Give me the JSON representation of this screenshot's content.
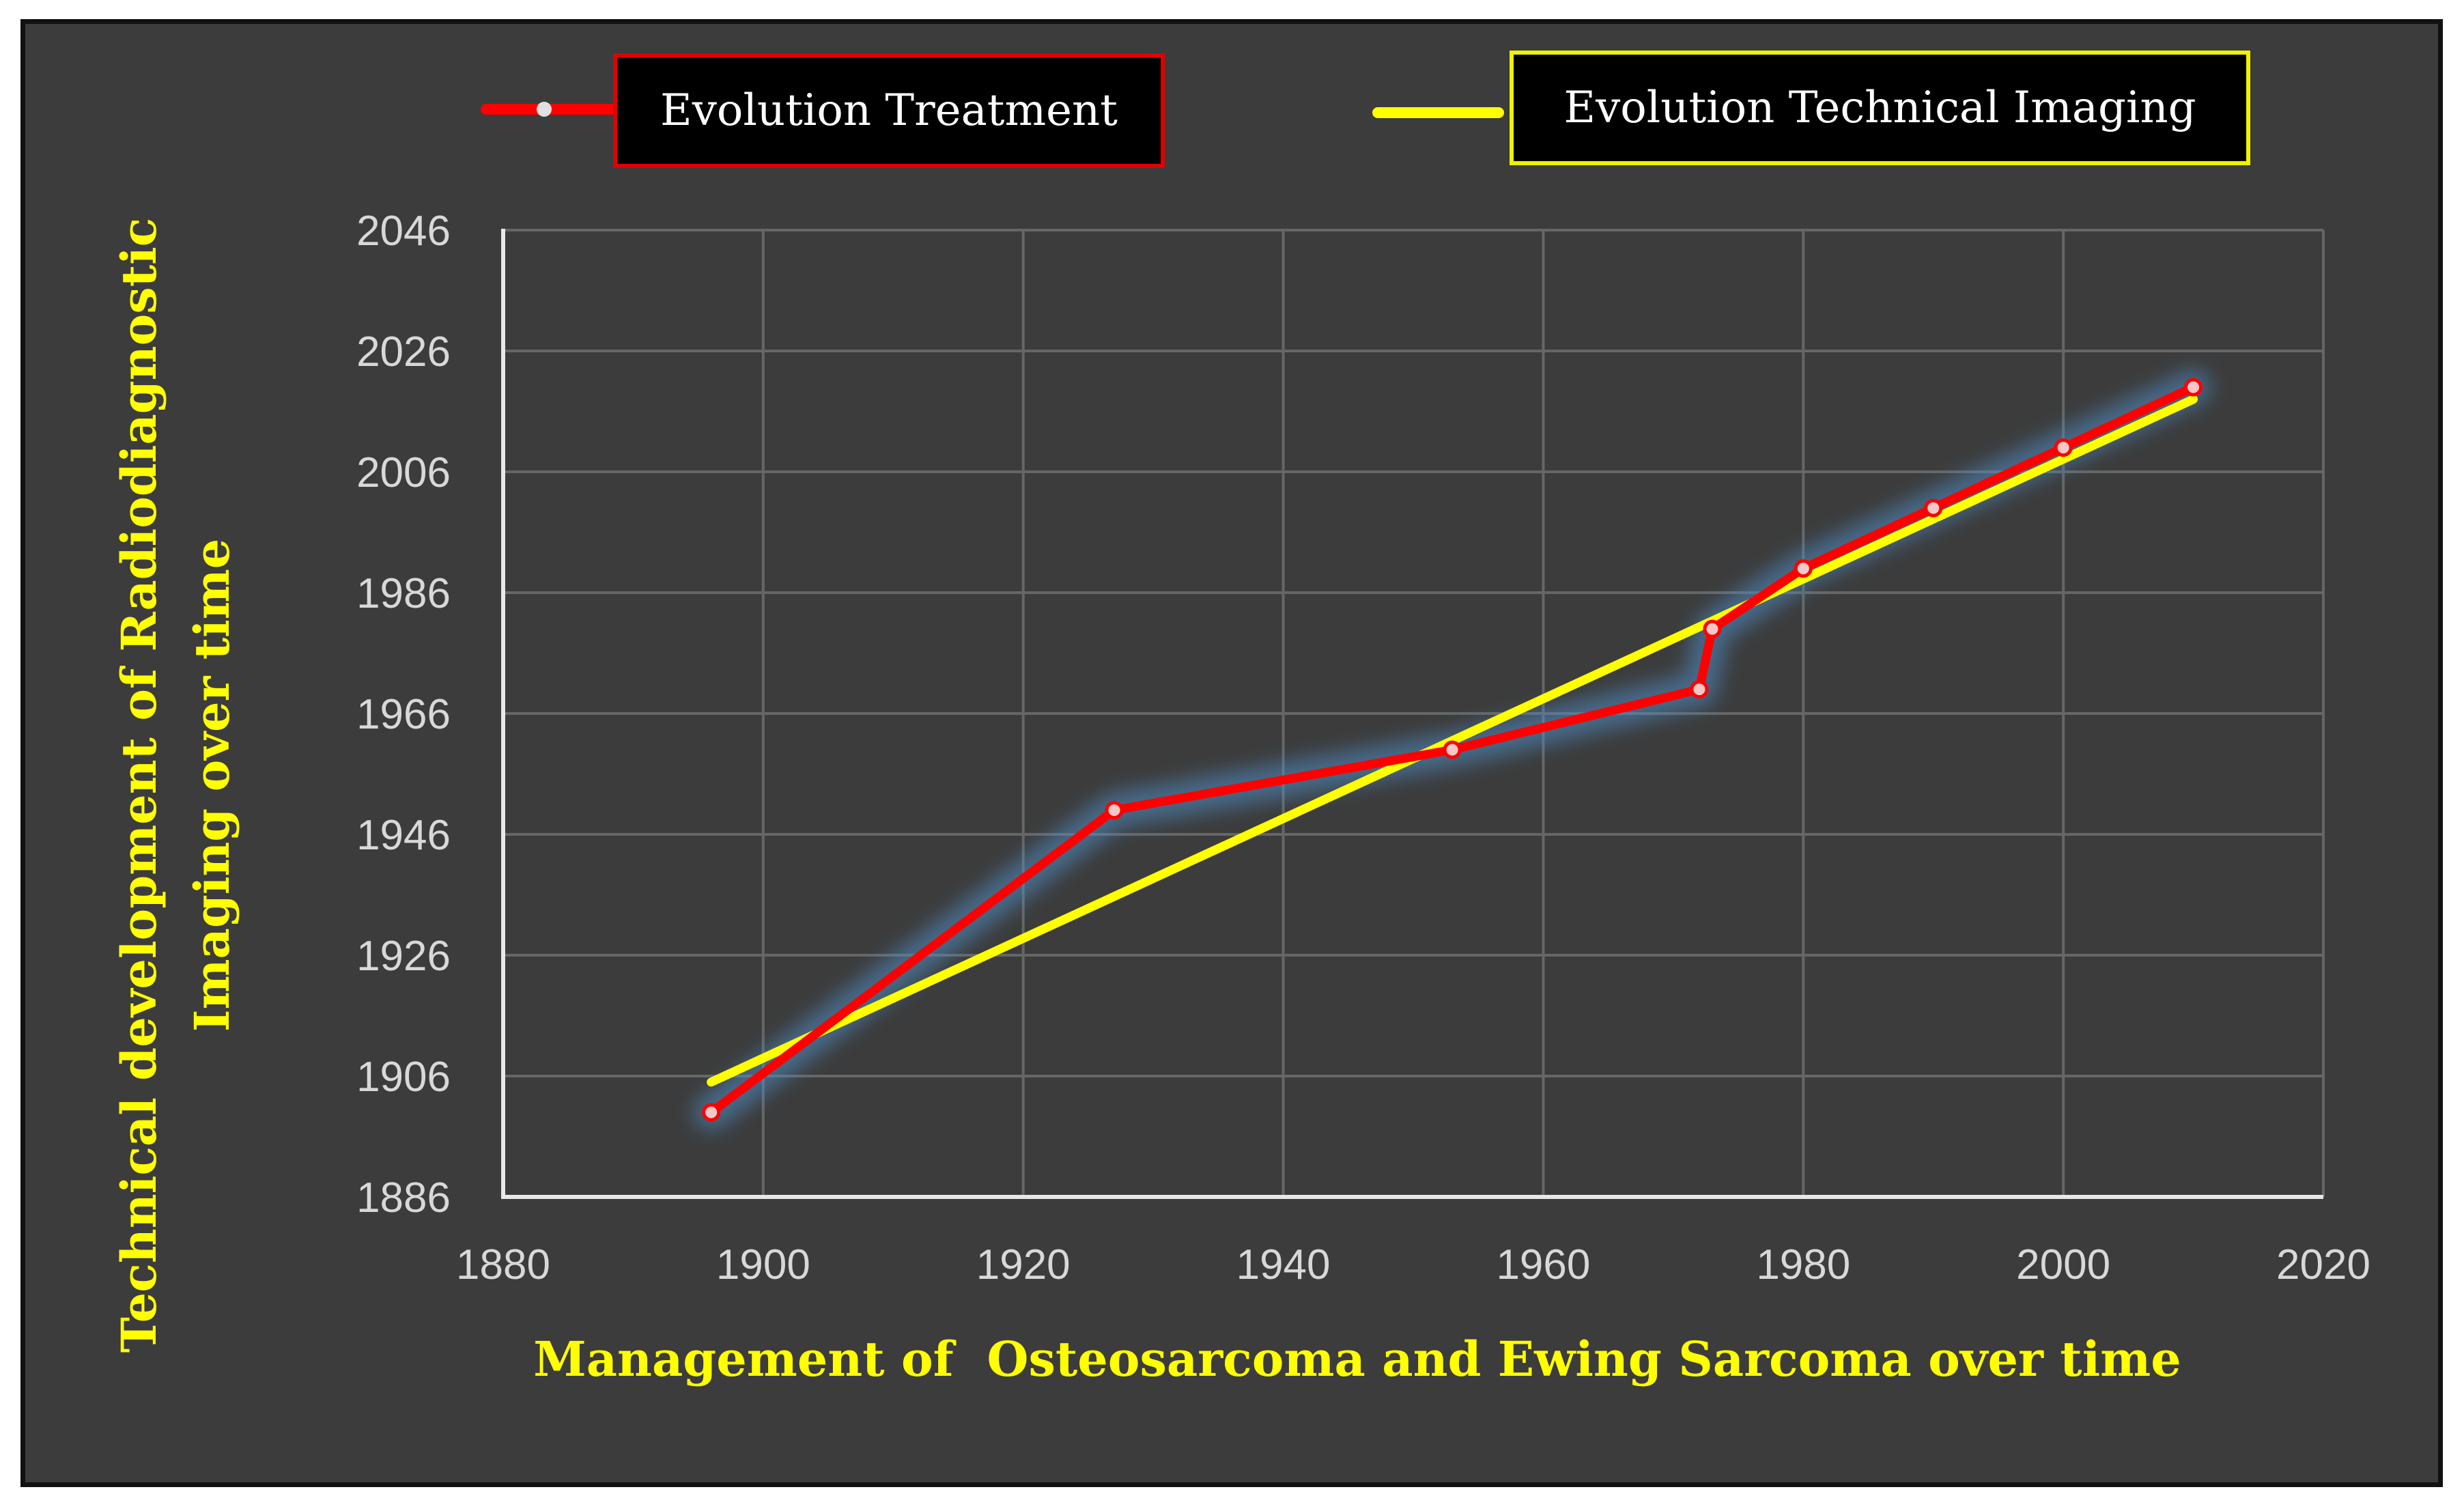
{
  "chart_data": {
    "type": "line",
    "title": "",
    "xlabel": "Management of  Osteosarcoma and Ewing Sarcoma over time",
    "ylabel_lines": [
      "Technical development of Radiodiagnostic",
      "Imaging over time"
    ],
    "xlim": [
      1880,
      2020
    ],
    "ylim": [
      1886,
      2046
    ],
    "x_ticks": [
      1880,
      1900,
      1920,
      1940,
      1960,
      1980,
      2000,
      2020
    ],
    "y_ticks": [
      1886,
      1906,
      1926,
      1946,
      1966,
      1986,
      2006,
      2026,
      2046
    ],
    "grid": true,
    "legend_position": "top",
    "series": [
      {
        "name": "Evolution Treatment",
        "color": "#ff0000",
        "markers": true,
        "x": [
          1896,
          1927,
          1953,
          1972,
          1973,
          1980,
          1990,
          2000,
          2010
        ],
        "y": [
          1900,
          1950,
          1960,
          1970,
          1980,
          1990,
          2000,
          2010,
          2020
        ]
      },
      {
        "name": "Evolution Technical Imaging",
        "color": "#ffff00",
        "markers": false,
        "x": [
          1896,
          2010
        ],
        "y": [
          1905,
          2018
        ]
      }
    ]
  },
  "legend": {
    "treatment_label": "Evolution Treatment",
    "treatment_color": "#ff0000",
    "imaging_label": "Evolution Technical Imaging",
    "imaging_color": "#ffff00"
  },
  "colors": {
    "background": "#3c3c3c",
    "grid": "#666666",
    "axis_title": "#ffff00",
    "tick_label": "#d8d8d8"
  }
}
